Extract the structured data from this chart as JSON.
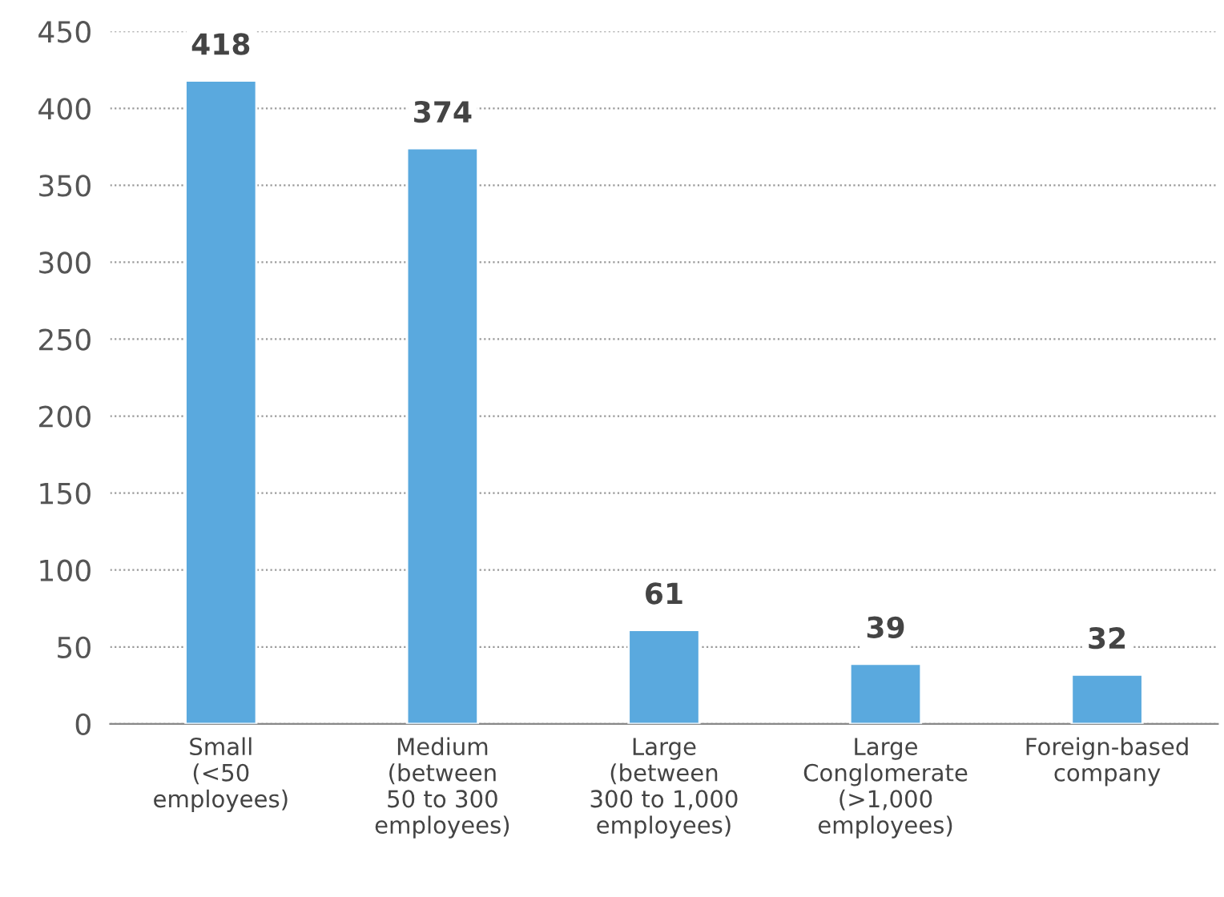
{
  "chart_data": {
    "type": "bar",
    "categories": [
      "Small\n(<50\nemployees)",
      "Medium\n(between\n50 to 300\nemployees)",
      "Large\n(between\n300 to 1,000\nemployees)",
      "Large\nConglomerate\n(>1,000\nemployees)",
      "Foreign-based\ncompany"
    ],
    "values": [
      418,
      374,
      61,
      39,
      32
    ],
    "color": "#5aa9de",
    "ylim": [
      0,
      450
    ],
    "yticks": [
      0,
      50,
      100,
      150,
      200,
      250,
      300,
      350,
      400,
      450
    ],
    "grid": "y",
    "data_labels": true
  }
}
